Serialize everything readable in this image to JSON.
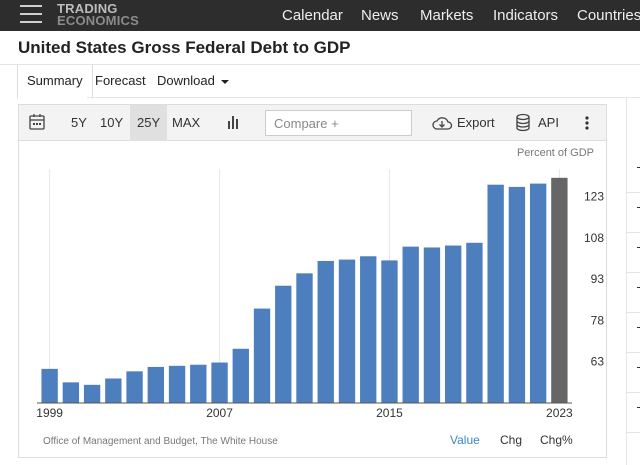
{
  "brand": {
    "line1": "TRADING",
    "line2": "ECONOMICS"
  },
  "nav": [
    "Calendar",
    "News",
    "Markets",
    "Indicators",
    "Countries"
  ],
  "title": "United States Gross Federal Debt to GDP",
  "tabs": {
    "summary": "Summary",
    "forecast": "Forecast",
    "download": "Download"
  },
  "toolbar": {
    "ranges": [
      "5Y",
      "10Y",
      "25Y",
      "MAX"
    ],
    "active_range": "25Y",
    "compare_placeholder": "Compare +",
    "export": "Export",
    "api": "API"
  },
  "chart_unit": "Percent of GDP",
  "source": "Office of Management and Budget, The White House",
  "bottom_tabs": {
    "value": "Value",
    "chg": "Chg",
    "chgpct": "Chg%"
  },
  "colors": {
    "bar": "#4d7fbf",
    "latest_bar": "#666666",
    "active_tab": "#3c87c6"
  },
  "chart_data": {
    "type": "bar",
    "categories": [
      "1999",
      "2000",
      "2001",
      "2002",
      "2003",
      "2004",
      "2005",
      "2006",
      "2007",
      "2008",
      "2009",
      "2010",
      "2011",
      "2012",
      "2013",
      "2014",
      "2015",
      "2016",
      "2017",
      "2018",
      "2019",
      "2020",
      "2021",
      "2022",
      "2023"
    ],
    "values": [
      60.4,
      55.5,
      54.6,
      56.9,
      59.5,
      61.1,
      61.5,
      61.9,
      62.7,
      67.7,
      82.3,
      90.6,
      95.1,
      99.6,
      100.1,
      101.3,
      99.8,
      104.8,
      104.5,
      105.2,
      106.2,
      127.3,
      126.5,
      127.7,
      129.8
    ],
    "x_tick_labels": [
      "1999",
      "2007",
      "2015",
      "2023"
    ],
    "y_ticks": [
      63,
      78,
      93,
      108,
      123
    ],
    "ylim": [
      48,
      133
    ],
    "grid": "vertical",
    "highlight_last": true
  }
}
